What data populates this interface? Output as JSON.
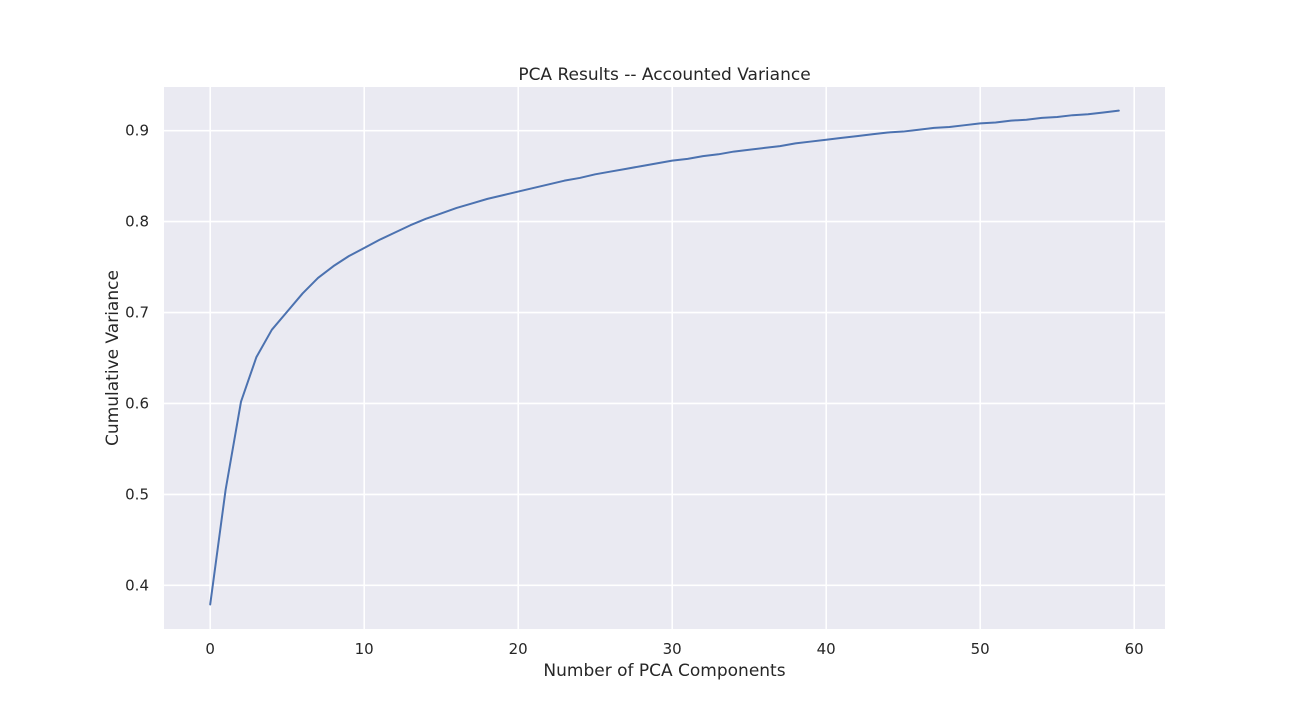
{
  "chart_data": {
    "type": "line",
    "title": "PCA Results -- Accounted Variance",
    "xlabel": "Number of PCA Components",
    "ylabel": "Cumulative Variance",
    "xlim": [
      -3,
      62
    ],
    "ylim": [
      0.352,
      0.948
    ],
    "x_ticks": [
      0,
      10,
      20,
      30,
      40,
      50,
      60
    ],
    "y_ticks": [
      0.4,
      0.5,
      0.6,
      0.7,
      0.8,
      0.9
    ],
    "x_tick_labels": [
      "0",
      "10",
      "20",
      "30",
      "40",
      "50",
      "60"
    ],
    "y_tick_labels": [
      "0.4",
      "0.5",
      "0.6",
      "0.7",
      "0.8",
      "0.9"
    ],
    "grid": true,
    "legend": "none",
    "colors": {
      "plot_background": "#eaeaf2",
      "grid": "#ffffff",
      "line": "#4c72b0",
      "text": "#262626"
    },
    "series": [
      {
        "x": [
          0,
          1,
          2,
          3,
          4,
          5,
          6,
          7,
          8,
          9,
          10,
          11,
          12,
          13,
          14,
          15,
          16,
          17,
          18,
          19,
          20,
          21,
          22,
          23,
          24,
          25,
          26,
          27,
          28,
          29,
          30,
          31,
          32,
          33,
          34,
          35,
          36,
          37,
          38,
          39,
          40,
          41,
          42,
          43,
          44,
          45,
          46,
          47,
          48,
          49,
          50,
          51,
          52,
          53,
          54,
          55,
          56,
          57,
          58,
          59
        ],
        "values": [
          0.379,
          0.505,
          0.602,
          0.651,
          0.681,
          0.701,
          0.721,
          0.738,
          0.751,
          0.762,
          0.771,
          0.78,
          0.788,
          0.796,
          0.803,
          0.809,
          0.815,
          0.82,
          0.825,
          0.829,
          0.833,
          0.837,
          0.841,
          0.845,
          0.848,
          0.852,
          0.855,
          0.858,
          0.861,
          0.864,
          0.867,
          0.869,
          0.872,
          0.874,
          0.877,
          0.879,
          0.881,
          0.883,
          0.886,
          0.888,
          0.89,
          0.892,
          0.894,
          0.896,
          0.898,
          0.899,
          0.901,
          0.903,
          0.904,
          0.906,
          0.908,
          0.909,
          0.911,
          0.912,
          0.914,
          0.915,
          0.917,
          0.918,
          0.92,
          0.922
        ]
      }
    ]
  }
}
